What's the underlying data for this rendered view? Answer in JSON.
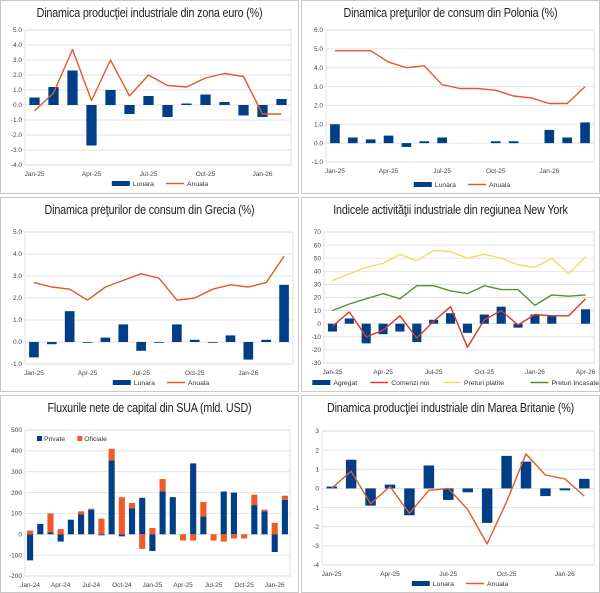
{
  "chart_data": [
    {
      "id": "c1",
      "type": "bar+line",
      "title": "Dinamica producţiei industriale din zona euro (%)",
      "categories": [
        "Jan-25",
        "Feb-25",
        "Mar-25",
        "Apr-25",
        "May-25",
        "Jun-25",
        "Jul-25",
        "Aug-25",
        "Sep-25",
        "Oct-25",
        "Nov-25",
        "Dec-25",
        "Jan-26",
        "Feb-26"
      ],
      "xtick_labels": {
        "0": "Jan-25",
        "3": "Apr-25",
        "6": "Jul-25",
        "9": "Oct-25",
        "12": "Jan-26"
      },
      "ylim": [
        -4,
        5
      ],
      "ystep": 1,
      "ydecimals": 1,
      "grid": true,
      "series": [
        {
          "name": "Lunara",
          "kind": "bar",
          "color": "#003f87",
          "values": [
            0.5,
            1.2,
            2.3,
            -2.7,
            1.0,
            -0.6,
            0.6,
            -0.8,
            0.1,
            0.7,
            0.2,
            -0.7,
            -0.8,
            0.4
          ]
        },
        {
          "name": "Anuala",
          "kind": "line",
          "color": "#e05a2b",
          "values": [
            -0.4,
            0.8,
            3.7,
            0.3,
            3.0,
            0.6,
            2.0,
            1.3,
            1.2,
            1.8,
            2.1,
            1.9,
            -0.6,
            -0.6
          ]
        }
      ],
      "legend": "bottom"
    },
    {
      "id": "c2",
      "type": "bar+line",
      "title": "Dinamica preţurilor de consum din Polonia (%)",
      "categories": [
        "Jan-25",
        "Feb-25",
        "Mar-25",
        "Apr-25",
        "May-25",
        "Jun-25",
        "Jul-25",
        "Aug-25",
        "Sep-25",
        "Oct-25",
        "Nov-25",
        "Dec-25",
        "Jan-26",
        "Feb-26",
        "Mar-26"
      ],
      "xtick_labels": {
        "0": "Jan-25",
        "3": "Apr-25",
        "6": "Jul-25",
        "9": "Oct-25",
        "12": "Jan-26"
      },
      "ylim": [
        -1,
        6
      ],
      "ystep": 1,
      "ydecimals": 1,
      "grid": true,
      "series": [
        {
          "name": "Lunara",
          "kind": "bar",
          "color": "#003f87",
          "values": [
            1.0,
            0.3,
            0.2,
            0.4,
            -0.2,
            0.1,
            0.3,
            0.0,
            0.0,
            0.1,
            0.1,
            0.0,
            0.7,
            0.3,
            1.1
          ]
        },
        {
          "name": "Anuala",
          "kind": "line",
          "color": "#e05a2b",
          "values": [
            4.9,
            4.9,
            4.9,
            4.3,
            4.0,
            4.1,
            3.1,
            2.9,
            2.9,
            2.8,
            2.5,
            2.4,
            2.1,
            2.1,
            3.0
          ]
        }
      ],
      "legend": "bottom"
    },
    {
      "id": "c3",
      "type": "bar+line",
      "title": "Dinamica preţurilor de consum din Grecia (%)",
      "categories": [
        "Jan-25",
        "Feb-25",
        "Mar-25",
        "Apr-25",
        "May-25",
        "Jun-25",
        "Jul-25",
        "Aug-25",
        "Sep-25",
        "Oct-25",
        "Nov-25",
        "Dec-25",
        "Jan-26",
        "Feb-26",
        "Mar-26"
      ],
      "xtick_labels": {
        "0": "Jan-25",
        "3": "Apr-25",
        "6": "Jul-25",
        "9": "Oct-25",
        "12": "Jan-26"
      },
      "ylim": [
        -1,
        5
      ],
      "ystep": 1,
      "ydecimals": 1,
      "grid": true,
      "series": [
        {
          "name": "Lunara",
          "kind": "bar",
          "color": "#003f87",
          "values": [
            -0.7,
            -0.1,
            1.4,
            0.0,
            0.2,
            0.8,
            -0.4,
            0.0,
            0.8,
            0.1,
            0.0,
            0.3,
            -0.8,
            0.1,
            2.6
          ]
        },
        {
          "name": "Anuala",
          "kind": "line",
          "color": "#e05a2b",
          "values": [
            2.7,
            2.5,
            2.4,
            1.9,
            2.5,
            2.8,
            3.1,
            2.9,
            1.9,
            2.0,
            2.4,
            2.6,
            2.5,
            2.7,
            3.9
          ]
        }
      ],
      "legend": "bottom"
    },
    {
      "id": "c4",
      "type": "bar+line",
      "title": "Indicele activităţii industriale din regiunea New York",
      "categories": [
        "Jan-25",
        "Feb-25",
        "Mar-25",
        "Apr-25",
        "May-25",
        "Jun-25",
        "Jul-25",
        "Aug-25",
        "Sep-25",
        "Oct-25",
        "Nov-25",
        "Dec-25",
        "Jan-26",
        "Feb-26",
        "Mar-26",
        "Apr-26"
      ],
      "xtick_labels": {
        "0": "Jan-25",
        "3": "Apr-25",
        "6": "Jul-25",
        "9": "Oct-25",
        "12": "Jan-26",
        "15": "Apr-26"
      },
      "ylim": [
        -30,
        70
      ],
      "ystep": 10,
      "ydecimals": 0,
      "grid": true,
      "series": [
        {
          "name": "Agregat",
          "kind": "bar",
          "color": "#003f87",
          "values": [
            -6,
            4,
            -15,
            -8,
            -6,
            -14,
            3,
            8,
            -7,
            7,
            13,
            -3,
            7,
            6,
            0,
            11
          ]
        },
        {
          "name": "Comenzi noi",
          "kind": "line",
          "color": "#d93a2b",
          "values": [
            -2,
            9,
            -10,
            -5,
            6,
            -11,
            2,
            13,
            -18,
            3,
            10,
            -1,
            7,
            6,
            6,
            19
          ]
        },
        {
          "name": "Preturi platite",
          "kind": "line",
          "color": "#f2dc5d",
          "values": [
            33,
            38,
            43,
            46,
            53,
            48,
            56,
            55,
            50,
            53,
            50,
            45,
            43,
            50,
            38,
            51
          ]
        },
        {
          "name": "Preturi Incasate",
          "kind": "line",
          "color": "#5a8f2e",
          "values": [
            10,
            15,
            19,
            23,
            19,
            29,
            29,
            25,
            23,
            29,
            26,
            26,
            14,
            22,
            21,
            22
          ]
        }
      ],
      "legend": "bottom"
    },
    {
      "id": "c5",
      "type": "stacked-bar",
      "title": "Fluxurile nete de capital din SUA (mld. USD)",
      "categories": [
        "Jan-24",
        "Feb-24",
        "Mar-24",
        "Apr-24",
        "May-24",
        "Jun-24",
        "Jul-24",
        "Aug-24",
        "Sep-24",
        "Oct-24",
        "Nov-24",
        "Dec-24",
        "Jan-25",
        "Feb-25",
        "Mar-25",
        "Apr-25",
        "May-25",
        "Jun-25",
        "Jul-25",
        "Aug-25",
        "Sep-25",
        "Oct-25",
        "Nov-25",
        "Dec-25",
        "Jan-26",
        "Feb-26"
      ],
      "xtick_labels": {
        "0": "Jan-24",
        "3": "Apr-24",
        "6": "Jul-24",
        "9": "Oct-24",
        "12": "Jan-25",
        "15": "Apr-25",
        "18": "Jul-25",
        "21": "Oct-25",
        "24": "Jan-26"
      },
      "ylim": [
        -200,
        500
      ],
      "ystep": 100,
      "ydecimals": 0,
      "grid": true,
      "series": [
        {
          "name": "Private",
          "kind": "bar",
          "color": "#003f87",
          "values": [
            -125,
            50,
            10,
            -35,
            70,
            95,
            118,
            -5,
            355,
            -10,
            125,
            175,
            -80,
            205,
            178,
            0,
            340,
            85,
            0,
            205,
            200,
            0,
            140,
            110,
            -85,
            165
          ]
        },
        {
          "name": "Oficiale",
          "kind": "bar",
          "color": "#f05a28",
          "values": [
            18,
            0,
            90,
            25,
            0,
            15,
            5,
            75,
            55,
            178,
            25,
            -70,
            30,
            60,
            0,
            -30,
            -30,
            70,
            -30,
            -35,
            -20,
            -20,
            50,
            8,
            55,
            20
          ]
        }
      ],
      "legend": "top-left"
    },
    {
      "id": "c6",
      "type": "bar+line",
      "title": "Dinamica producţiei industriale din Marea Britanie (%)",
      "categories": [
        "Jan-25",
        "Feb-25",
        "Mar-25",
        "Apr-25",
        "May-25",
        "Jun-25",
        "Jul-25",
        "Aug-25",
        "Sep-25",
        "Oct-25",
        "Nov-25",
        "Dec-25",
        "Jan-26",
        "Feb-26"
      ],
      "xtick_labels": {
        "0": "Jan-25",
        "3": "Apr-25",
        "6": "Jul-25",
        "9": "Oct-25",
        "12": "Jan-26"
      },
      "ylim": [
        -4,
        3
      ],
      "ystep": 1,
      "ydecimals": 0,
      "grid": true,
      "series": [
        {
          "name": "Lunara",
          "kind": "bar",
          "color": "#003f87",
          "values": [
            0.1,
            1.5,
            -0.9,
            0.2,
            -1.4,
            1.2,
            -0.6,
            -0.2,
            -1.8,
            1.7,
            1.4,
            -0.4,
            -0.1,
            0.5
          ]
        },
        {
          "name": "Anuala",
          "kind": "line",
          "color": "#e05a2b",
          "values": [
            0.0,
            0.9,
            -0.8,
            0.1,
            -1.3,
            -0.1,
            0.0,
            -1.1,
            -2.9,
            -0.7,
            1.8,
            0.7,
            0.5,
            -0.4
          ]
        }
      ],
      "legend": "bottom"
    }
  ]
}
